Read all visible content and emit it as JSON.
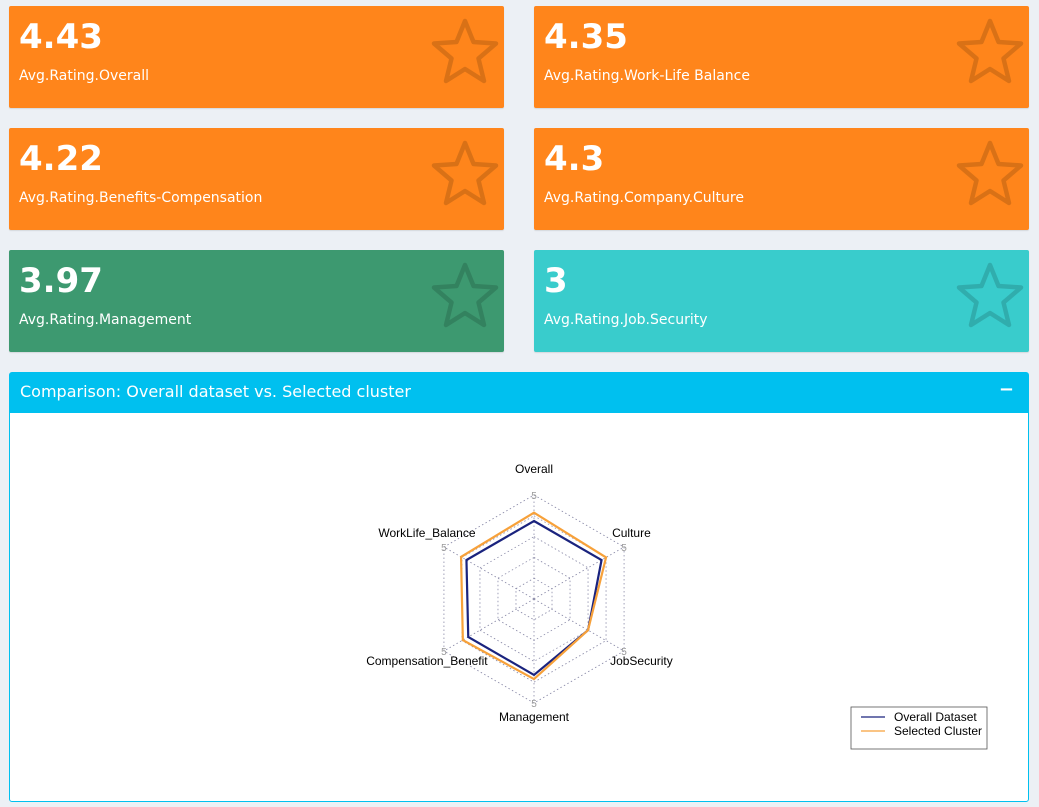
{
  "value_boxes": [
    {
      "value": "4.43",
      "label": "Avg.Rating.Overall",
      "color": "#ff851b",
      "icon": "star-outline-icon"
    },
    {
      "value": "4.35",
      "label": "Avg.Rating.Work-Life Balance",
      "color": "#ff851b",
      "icon": "star-outline-icon"
    },
    {
      "value": "4.22",
      "label": "Avg.Rating.Benefits-Compensation",
      "color": "#ff851b",
      "icon": "star-outline-icon"
    },
    {
      "value": "4.3",
      "label": "Avg.Rating.Company.Culture",
      "color": "#ff851b",
      "icon": "star-outline-icon"
    },
    {
      "value": "3.97",
      "label": "Avg.Rating.Management",
      "color": "#3d9970",
      "icon": "star-outline-icon"
    },
    {
      "value": "3",
      "label": "Avg.Rating.Job.Security",
      "color": "#39cccc",
      "icon": "star-outline-icon"
    }
  ],
  "comparison_box": {
    "title": "Comparison: Overall dataset vs. Selected cluster",
    "collapse_label": "−",
    "accent": "#00c0ef"
  },
  "chart_data": {
    "type": "radar",
    "axes": [
      "Overall",
      "Culture",
      "JobSecurity",
      "Management",
      "Compensation_Benefit",
      "WorkLife_Balance"
    ],
    "axis_max": 5,
    "axis_max_label": "5",
    "series": [
      {
        "name": "Overall Dataset",
        "color": "#1a237e",
        "values": [
          3.75,
          3.75,
          3.0,
          3.65,
          3.65,
          3.75
        ]
      },
      {
        "name": "Selected Cluster",
        "color": "#f7a13a",
        "values": [
          4.15,
          4.0,
          3.0,
          3.85,
          3.95,
          4.05
        ]
      }
    ],
    "legend_position": "bottom-right",
    "grid": "dotted"
  }
}
